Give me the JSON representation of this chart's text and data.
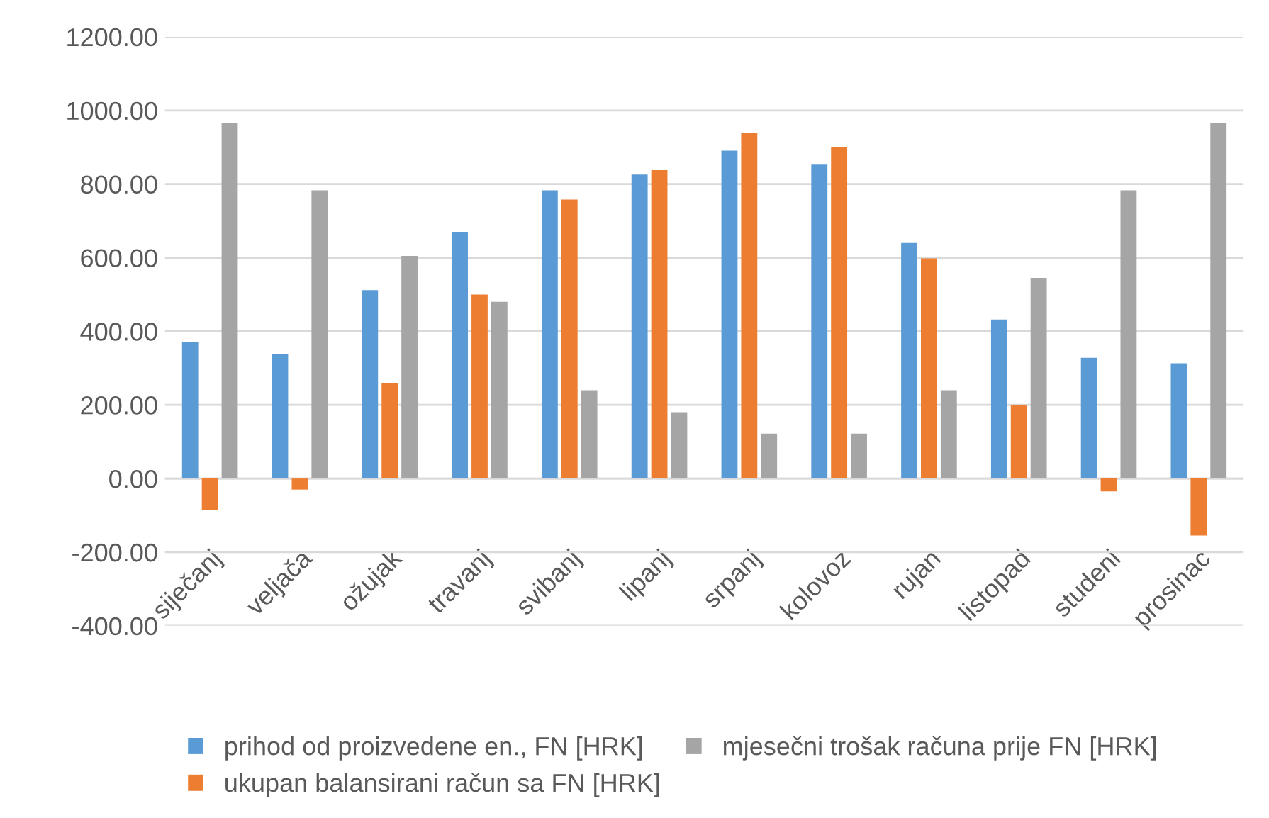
{
  "chart_data": {
    "type": "bar",
    "categories": [
      "siječanj",
      "veljača",
      "ožujak",
      "travanj",
      "svibanj",
      "lipanj",
      "srpanj",
      "kolovoz",
      "rujan",
      "listopad",
      "studeni",
      "prosinac"
    ],
    "series": [
      {
        "name": "prihod od proizvedene en., FN [HRK]",
        "color": "#5b9bd5",
        "values": [
          372,
          338,
          512,
          669,
          783,
          826,
          891,
          853,
          640,
          432,
          328,
          313
        ]
      },
      {
        "name": "ukupan balansirani račun sa FN [HRK]",
        "color": "#ed7d31",
        "values": [
          -85,
          -30,
          259,
          500,
          758,
          838,
          940,
          900,
          598,
          200,
          -35,
          -155
        ]
      },
      {
        "name": "mjesečni trošak računa prije FN [HRK]",
        "color": "#a5a5a5",
        "values": [
          965,
          783,
          605,
          480,
          240,
          180,
          122,
          122,
          240,
          545,
          783,
          965
        ]
      }
    ],
    "ylim": [
      -400,
      1200
    ],
    "yticks": [
      {
        "value": -400,
        "label": "-400.00"
      },
      {
        "value": -200,
        "label": "-200.00"
      },
      {
        "value": 0,
        "label": "0.00"
      },
      {
        "value": 200,
        "label": "200.00"
      },
      {
        "value": 400,
        "label": "400.00"
      },
      {
        "value": 600,
        "label": "600.00"
      },
      {
        "value": 800,
        "label": "800.00"
      },
      {
        "value": 1000,
        "label": "1000.00"
      },
      {
        "value": 1200,
        "label": "1200.00"
      }
    ],
    "grid": "y",
    "legend": "bottom"
  }
}
